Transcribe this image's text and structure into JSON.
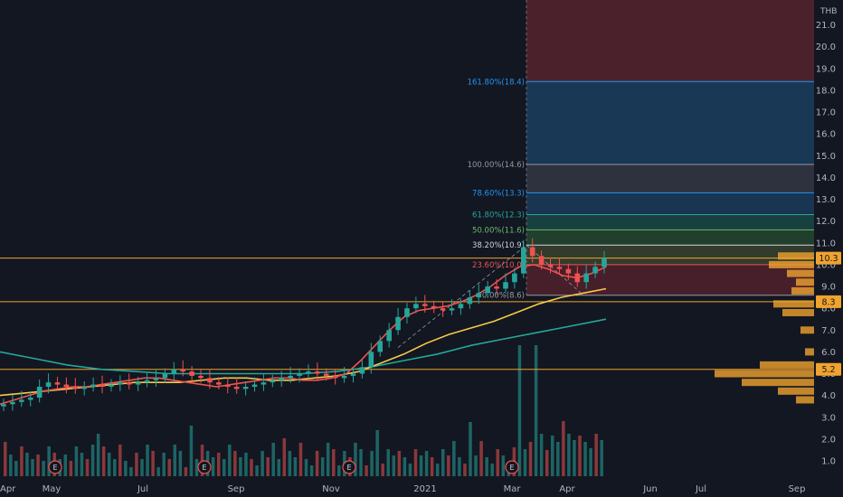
{
  "chart_data": {
    "type": "candlestick",
    "currency": "THB",
    "y_axis": {
      "min": 1.0,
      "max": 22.0,
      "position": "right",
      "ticks": [
        1.0,
        2.0,
        3.0,
        4.0,
        5.0,
        6.0,
        7.0,
        8.0,
        9.0,
        10.0,
        11.0,
        12.0,
        13.0,
        14.0,
        15.0,
        16.0,
        17.0,
        18.0,
        19.0,
        20.0,
        21.0
      ]
    },
    "x_axis": {
      "ticks": [
        "Apr",
        "May",
        "Jul",
        "Sep",
        "Nov",
        "2021",
        "Mar",
        "Apr",
        "Jun",
        "Jul",
        "Sep"
      ]
    },
    "grid": false,
    "price_tags": [
      {
        "value": 10.3,
        "label": "10.3",
        "color": "#f0a32e"
      },
      {
        "value": 8.3,
        "label": "8.3",
        "color": "#f0a32e"
      },
      {
        "value": 5.2,
        "label": "5.2",
        "color": "#f0a32e"
      }
    ],
    "horizontal_lines": [
      10.3,
      8.3,
      5.2
    ],
    "fibonacci": [
      {
        "label": "161.80%(18.4)",
        "value": 18.4,
        "color": "#2196f3"
      },
      {
        "label": "100.00%(14.6)",
        "value": 14.6,
        "color": "#9598a1"
      },
      {
        "label": "78.60%(13.3)",
        "value": 13.3,
        "color": "#2196f3"
      },
      {
        "label": "61.80%(12.3)",
        "value": 12.3,
        "color": "#26a69a"
      },
      {
        "label": "50.00%(11.6)",
        "value": 11.6,
        "color": "#66bb6a"
      },
      {
        "label": "38.20%(10.9)",
        "value": 10.9,
        "color": "#d1d4dc"
      },
      {
        "label": "23.60%(10.0)",
        "value": 10.0,
        "color": "#ef5350"
      },
      {
        "label": "0.00%(8.6)",
        "value": 8.6,
        "color": "#9598a1"
      }
    ],
    "earnings_markers": [
      "E",
      "E",
      "E",
      "E"
    ],
    "ohlc_weekly": [
      3.6,
      3.7,
      3.8,
      3.9,
      4.4,
      4.6,
      4.5,
      4.4,
      4.3,
      4.4,
      4.5,
      4.4,
      4.5,
      4.6,
      4.5,
      4.6,
      4.7,
      4.8,
      5.0,
      5.2,
      5.1,
      4.9,
      4.8,
      4.6,
      4.5,
      4.4,
      4.3,
      4.4,
      4.5,
      4.6,
      4.7,
      4.8,
      4.9,
      5.0,
      5.1,
      5.0,
      4.9,
      4.8,
      4.9,
      5.0,
      5.3,
      6.0,
      6.5,
      7.0,
      7.6,
      8.0,
      8.2,
      8.1,
      8.0,
      7.9,
      8.0,
      8.2,
      8.5,
      8.7,
      9.0,
      8.9,
      9.2,
      9.6,
      10.8,
      10.4,
      10.0,
      9.9,
      9.8,
      9.6,
      9.2,
      9.6,
      9.9,
      10.3
    ],
    "ma_short": [
      3.6,
      3.8,
      4.0,
      4.2,
      4.3,
      4.4,
      4.4,
      4.5,
      4.6,
      4.7,
      4.8,
      4.8,
      4.7,
      4.6,
      4.5,
      4.4,
      4.5,
      4.6,
      4.7,
      4.8,
      4.8,
      4.7,
      4.7,
      4.8,
      5.0,
      5.6,
      6.3,
      7.0,
      7.6,
      7.9,
      8.0,
      8.1,
      8.3,
      8.6,
      9.0,
      9.5,
      9.9,
      10.0,
      9.8,
      9.5,
      9.4,
      9.6,
      9.9
    ],
    "ma_mid": [
      4.0,
      4.1,
      4.2,
      4.3,
      4.4,
      4.5,
      4.6,
      4.6,
      4.6,
      4.7,
      4.8,
      4.8,
      4.7,
      4.7,
      4.8,
      4.9,
      5.1,
      5.5,
      5.9,
      6.4,
      6.8,
      7.1,
      7.4,
      7.8,
      8.2,
      8.5,
      8.7,
      8.9
    ],
    "ma_long": [
      6.0,
      5.7,
      5.4,
      5.2,
      5.1,
      5.0,
      5.0,
      5.0,
      5.0,
      5.0,
      5.1,
      5.3,
      5.6,
      5.9,
      6.3,
      6.6,
      6.9,
      7.2,
      7.5
    ],
    "volume_profile_rows": [
      {
        "price": 10.4,
        "width": 40
      },
      {
        "price": 10.0,
        "width": 50
      },
      {
        "price": 9.6,
        "width": 30
      },
      {
        "price": 9.2,
        "width": 20
      },
      {
        "price": 8.8,
        "width": 25
      },
      {
        "price": 8.2,
        "width": 45
      },
      {
        "price": 7.8,
        "width": 35
      },
      {
        "price": 7.0,
        "width": 15
      },
      {
        "price": 6.0,
        "width": 10
      },
      {
        "price": 5.4,
        "width": 60
      },
      {
        "price": 5.0,
        "width": 110
      },
      {
        "price": 4.6,
        "width": 80
      },
      {
        "price": 4.2,
        "width": 40
      },
      {
        "price": 3.8,
        "width": 20
      }
    ]
  }
}
